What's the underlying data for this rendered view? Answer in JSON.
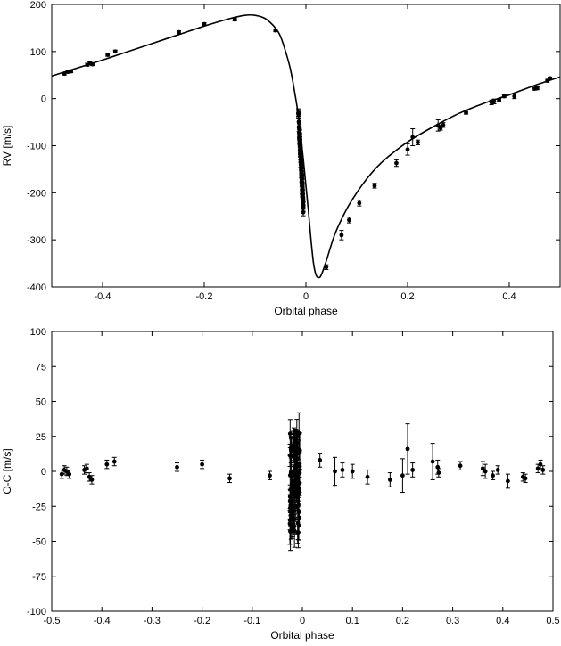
{
  "chart_data": [
    {
      "type": "scatter",
      "xlabel": "Orbital phase",
      "ylabel": "RV [m/s]",
      "xlim": [
        -0.5,
        0.5
      ],
      "ylim": [
        -400,
        200
      ],
      "xticks": [
        -0.4,
        -0.2,
        0,
        0.2,
        0.4
      ],
      "yticks": [
        -400,
        -300,
        -200,
        -100,
        0,
        100,
        200
      ],
      "grid": false,
      "model_curve": {
        "x": [
          -0.5,
          -0.45,
          -0.4,
          -0.35,
          -0.3,
          -0.25,
          -0.2,
          -0.15,
          -0.12,
          -0.1,
          -0.08,
          -0.06,
          -0.05,
          -0.04,
          -0.03,
          -0.02,
          -0.015,
          -0.01,
          -0.005,
          0,
          0.005,
          0.01,
          0.015,
          0.02,
          0.025,
          0.03,
          0.04,
          0.05,
          0.06,
          0.08,
          0.1,
          0.12,
          0.14,
          0.16,
          0.2,
          0.25,
          0.3,
          0.35,
          0.4,
          0.45,
          0.5
        ],
        "y": [
          48,
          65,
          82,
          100,
          118,
          136,
          154,
          170,
          177,
          177,
          170,
          150,
          132,
          100,
          60,
          0,
          -35,
          -80,
          -130,
          -185,
          -240,
          -300,
          -350,
          -375,
          -380,
          -375,
          -345,
          -310,
          -280,
          -235,
          -200,
          -170,
          -145,
          -125,
          -92,
          -60,
          -32,
          -10,
          8,
          28,
          46
        ]
      },
      "series": [
        {
          "x": [
            -0.475,
            -0.468,
            -0.462,
            -0.43,
            -0.425,
            -0.42,
            -0.39,
            -0.375,
            -0.25,
            -0.2,
            -0.14,
            -0.06,
            0.04,
            0.07,
            0.085,
            0.105,
            0.135,
            0.178,
            0.2,
            0.21,
            0.22,
            0.26,
            0.265,
            0.27,
            0.315,
            0.365,
            0.37,
            0.38,
            0.39,
            0.41,
            0.45,
            0.455,
            0.475,
            0.48
          ],
          "y": [
            53,
            57,
            58,
            72,
            75,
            73,
            93,
            100,
            141,
            158,
            168,
            145,
            -358,
            -290,
            -258,
            -222,
            -185,
            -137,
            -108,
            -82,
            -93,
            -57,
            -62,
            -56,
            -30,
            -8,
            -6,
            -3,
            5,
            5,
            21,
            22,
            38,
            43
          ],
          "err": [
            3,
            3,
            3,
            3,
            3,
            3,
            3,
            3,
            3,
            3,
            3,
            3,
            5,
            10,
            6,
            6,
            5,
            7,
            12,
            18,
            5,
            12,
            5,
            5,
            3,
            5,
            5,
            3,
            3,
            5,
            3,
            3,
            3,
            3
          ]
        }
      ],
      "dense_cluster": {
        "x": [
          -0.015,
          -0.005
        ],
        "y": [
          -235,
          -25
        ],
        "err": 8
      }
    },
    {
      "type": "scatter",
      "xlabel": "Orbital phase",
      "ylabel": "O-C [m/s]",
      "xlim": [
        -0.5,
        0.5
      ],
      "ylim": [
        -100,
        100
      ],
      "xticks": [
        -0.5,
        -0.4,
        -0.3,
        -0.2,
        -0.1,
        0,
        0.1,
        0.2,
        0.3,
        0.4,
        0.5
      ],
      "yticks": [
        -100,
        -75,
        -50,
        -25,
        0,
        25,
        50,
        75,
        100
      ],
      "grid": false,
      "series": [
        {
          "x": [
            -0.48,
            -0.475,
            -0.47,
            -0.465,
            -0.435,
            -0.43,
            -0.425,
            -0.42,
            -0.39,
            -0.375,
            -0.25,
            -0.2,
            -0.145,
            -0.065,
            0.035,
            0.065,
            0.08,
            0.1,
            0.13,
            0.175,
            0.2,
            0.21,
            0.22,
            0.26,
            0.27,
            0.272,
            0.315,
            0.36,
            0.365,
            0.38,
            0.39,
            0.41,
            0.44,
            0.445,
            0.47,
            0.475,
            0.48
          ],
          "y": [
            -2,
            1,
            0,
            -2,
            1,
            2,
            -4,
            -6,
            5,
            7,
            3,
            5,
            -5,
            -3,
            8,
            0,
            1,
            0,
            -4,
            -6,
            -3,
            16,
            1,
            7,
            3,
            -1,
            4,
            2,
            0,
            -3,
            1,
            -7,
            -4,
            -5,
            2,
            5,
            1
          ],
          "err": [
            3,
            3,
            3,
            3,
            3,
            3,
            3,
            3,
            3,
            3,
            3,
            3,
            3,
            3,
            5,
            10,
            5,
            5,
            5,
            5,
            12,
            18,
            5,
            13,
            5,
            3,
            3,
            5,
            5,
            3,
            3,
            5,
            3,
            3,
            3,
            3,
            3
          ]
        }
      ],
      "dense_cluster": {
        "x": [
          -0.025,
          -0.005
        ],
        "y": [
          -45,
          30
        ],
        "err": 10
      }
    }
  ]
}
